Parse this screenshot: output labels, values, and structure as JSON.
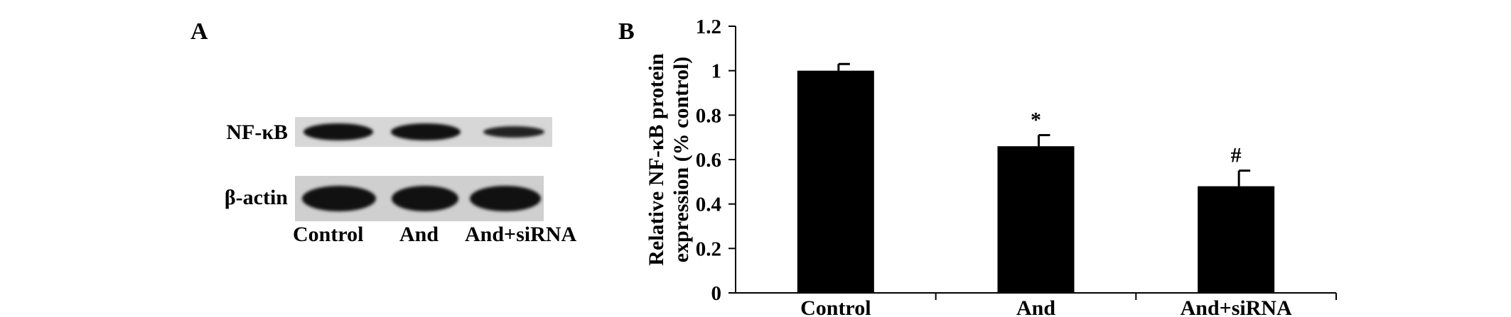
{
  "figure": {
    "panel_a": {
      "letter": "A",
      "blot_rows": [
        "NF-κB",
        "β-actin"
      ],
      "lanes": [
        "Control",
        "And",
        "And+siRNA"
      ]
    },
    "panel_b": {
      "letter": "B"
    }
  },
  "chart_data": {
    "type": "bar",
    "categories": [
      "Control",
      "And",
      "And+siRNA"
    ],
    "values": [
      1.0,
      0.66,
      0.48
    ],
    "errors": [
      0.03,
      0.05,
      0.07
    ],
    "annotations": [
      "",
      "*",
      "#"
    ],
    "ylabel_line1": "Relative NF-κB protein",
    "ylabel_line2": "expression (% control)",
    "ylim": [
      0,
      1.2
    ],
    "yticks": [
      "0",
      "0.2",
      "0.4",
      "0.6",
      "0.8",
      "1",
      "1.2"
    ],
    "bar_color": "#000000",
    "grid": false
  }
}
